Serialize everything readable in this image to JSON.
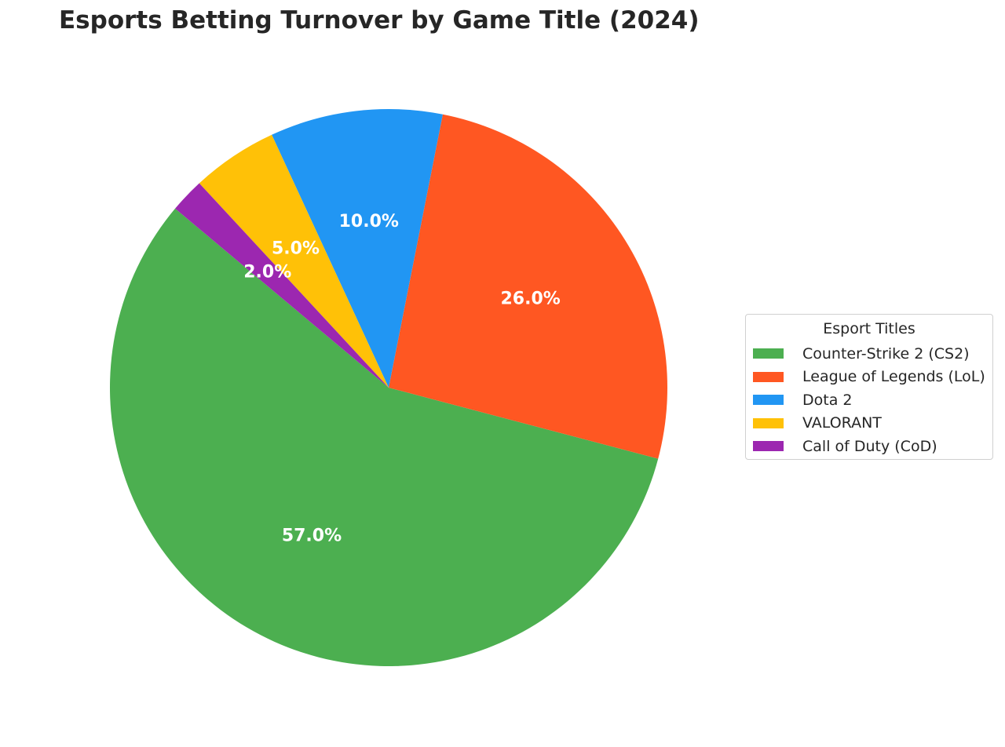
{
  "chart_data": {
    "type": "pie",
    "title": "Esports Betting Turnover by Game Title (2024)",
    "categories": [
      "Counter-Strike 2 (CS2)",
      "League of Legends (LoL)",
      "Dota 2",
      "VALORANT",
      "Call of Duty (CoD)"
    ],
    "values": [
      57.0,
      26.0,
      10.0,
      5.0,
      2.0
    ],
    "labels": [
      "57.0%",
      "26.0%",
      "10.0%",
      "5.0%",
      "2.0%"
    ],
    "colors": [
      "#4CAF50",
      "#FF5722",
      "#2196F3",
      "#FFC107",
      "#9C27B0"
    ],
    "start_angle_deg": 140,
    "direction": "counterclockwise",
    "legend": {
      "title": "Esport Titles",
      "placement": "right"
    }
  }
}
